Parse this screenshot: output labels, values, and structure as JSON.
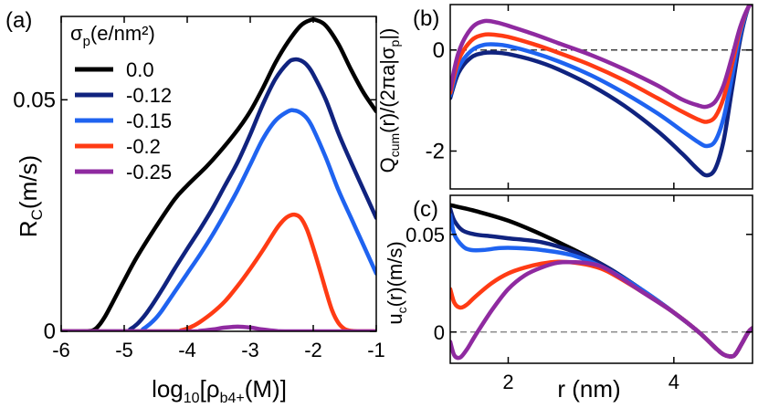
{
  "colors": {
    "black": "#000000",
    "navy": "#10237f",
    "blue": "#1f63f0",
    "red": "#ff3b14",
    "purple": "#8f2aa0",
    "refline": "#000000"
  },
  "chart_data": [
    {
      "id": "a",
      "type": "line",
      "panel_label": "(a)",
      "xlabel_prefix": "log",
      "xlabel_sub": "10",
      "xlabel_mid": "[ρ",
      "xlabel_sub2": "b4+",
      "xlabel_suffix": "(M)]",
      "ylabel_main": "R",
      "ylabel_sub": "C",
      "ylabel_suffix": "(m/s)",
      "xlim": [
        -6,
        -1
      ],
      "ylim": [
        0,
        0.068
      ],
      "xticks": [
        -6,
        -5,
        -4,
        -3,
        -2,
        -1
      ],
      "xtick_labels": [
        "-6",
        "-5",
        "-4",
        "-3",
        "-2",
        "-1"
      ],
      "yticks": [
        0,
        0.05
      ],
      "ytick_labels": [
        "0",
        "0.05"
      ],
      "legend_title_main": "σ",
      "legend_title_sub": "p",
      "legend_title_suffix": "(e/nm²)",
      "series": [
        {
          "name": "0.0",
          "color_key": "black",
          "x": [
            -6,
            -5.7,
            -5.5,
            -5.4,
            -5.3,
            -5.2,
            -5.0,
            -4.8,
            -4.5,
            -4.2,
            -4.0,
            -3.7,
            -3.5,
            -3.2,
            -3.0,
            -2.8,
            -2.6,
            -2.4,
            -2.2,
            -2.05,
            -1.95,
            -1.8,
            -1.6,
            -1.4,
            -1.2,
            -1.0
          ],
          "y": [
            0,
            0,
            0.0002,
            0.0013,
            0.0033,
            0.0058,
            0.011,
            0.016,
            0.0225,
            0.0285,
            0.0315,
            0.0355,
            0.0385,
            0.0435,
            0.0475,
            0.0525,
            0.058,
            0.0625,
            0.066,
            0.0672,
            0.0672,
            0.066,
            0.062,
            0.0565,
            0.0515,
            0.0475
          ]
        },
        {
          "name": "-0.12",
          "color_key": "navy",
          "x": [
            -6,
            -5.0,
            -4.9,
            -4.8,
            -4.7,
            -4.6,
            -4.4,
            -4.2,
            -4.0,
            -3.8,
            -3.6,
            -3.4,
            -3.2,
            -3.0,
            -2.8,
            -2.6,
            -2.4,
            -2.3,
            -2.2,
            -2.1,
            -2.0,
            -1.8,
            -1.6,
            -1.4,
            -1.2,
            -1.0
          ],
          "y": [
            0,
            0,
            0.0005,
            0.0015,
            0.003,
            0.0048,
            0.009,
            0.0135,
            0.0178,
            0.022,
            0.0265,
            0.0315,
            0.0365,
            0.0425,
            0.049,
            0.0545,
            0.058,
            0.0587,
            0.0585,
            0.0575,
            0.0555,
            0.05,
            0.0428,
            0.0365,
            0.0305,
            0.0245
          ]
        },
        {
          "name": "-0.15",
          "color_key": "blue",
          "x": [
            -6,
            -4.8,
            -4.7,
            -4.6,
            -4.5,
            -4.4,
            -4.2,
            -4.0,
            -3.8,
            -3.6,
            -3.4,
            -3.2,
            -3.0,
            -2.8,
            -2.6,
            -2.4,
            -2.3,
            -2.2,
            -2.1,
            -2.0,
            -1.8,
            -1.6,
            -1.4,
            -1.2,
            -1.0
          ],
          "y": [
            0,
            0,
            0.0005,
            0.0015,
            0.0028,
            0.0045,
            0.0085,
            0.0125,
            0.0165,
            0.0208,
            0.0255,
            0.0305,
            0.036,
            0.0415,
            0.0455,
            0.0475,
            0.0477,
            0.0472,
            0.046,
            0.0437,
            0.0375,
            0.0305,
            0.0245,
            0.0185,
            0.0125
          ]
        },
        {
          "name": "-0.2",
          "color_key": "red",
          "x": [
            -6,
            -4.2,
            -4.1,
            -4.0,
            -3.9,
            -3.8,
            -3.6,
            -3.4,
            -3.2,
            -3.0,
            -2.8,
            -2.6,
            -2.5,
            -2.4,
            -2.3,
            -2.2,
            -2.1,
            -2.0,
            -1.9,
            -1.8,
            -1.7,
            -1.6,
            -1.5,
            -1.4,
            -1.3,
            -1.0
          ],
          "y": [
            0,
            0,
            0.0002,
            0.0006,
            0.0012,
            0.002,
            0.004,
            0.0065,
            0.0098,
            0.0135,
            0.0175,
            0.0218,
            0.0236,
            0.0248,
            0.0252,
            0.0245,
            0.022,
            0.018,
            0.0135,
            0.0088,
            0.0045,
            0.0018,
            0.0005,
            0.0001,
            0,
            0
          ]
        },
        {
          "name": "-0.25",
          "color_key": "purple",
          "x": [
            -6,
            -4.0,
            -3.8,
            -3.6,
            -3.4,
            -3.2,
            -3.0,
            -2.8,
            -2.6,
            -2.4,
            -1.0
          ],
          "y": [
            0,
            0,
            0.0001,
            0.0004,
            0.0008,
            0.001,
            0.0008,
            0.0004,
            0.0001,
            0,
            0
          ]
        }
      ]
    },
    {
      "id": "b",
      "type": "line",
      "panel_label": "(b)",
      "ylabel_main": "Q",
      "ylabel_sub": "cum",
      "ylabel_rest": "(r)/(2πa|σ",
      "ylabel_sub2": "p",
      "ylabel_end": "|)",
      "xlim": [
        1.3,
        4.95
      ],
      "ylim": [
        -2.75,
        0.9
      ],
      "yticks": [
        0,
        -2
      ],
      "ytick_labels": [
        "0",
        "-2"
      ],
      "xticks": [
        2,
        4
      ],
      "series": [
        {
          "name": "-0.12",
          "color_key": "navy",
          "x": [
            1.3,
            1.4,
            1.55,
            1.7,
            1.85,
            2.0,
            2.3,
            2.6,
            3.0,
            3.4,
            3.8,
            4.1,
            4.3,
            4.4,
            4.5,
            4.6,
            4.7,
            4.8,
            4.9,
            4.95
          ],
          "y": [
            -0.95,
            -0.45,
            -0.15,
            -0.06,
            -0.05,
            -0.08,
            -0.2,
            -0.38,
            -0.7,
            -1.1,
            -1.6,
            -2.05,
            -2.38,
            -2.48,
            -2.35,
            -1.8,
            -0.8,
            0.2,
            0.85,
            0.9
          ]
        },
        {
          "name": "-0.15",
          "color_key": "blue",
          "x": [
            1.3,
            1.4,
            1.55,
            1.7,
            1.85,
            2.0,
            2.3,
            2.6,
            3.0,
            3.4,
            3.8,
            4.1,
            4.3,
            4.4,
            4.5,
            4.6,
            4.7,
            4.8,
            4.9,
            4.95
          ],
          "y": [
            -0.9,
            -0.35,
            -0.02,
            0.1,
            0.11,
            0.08,
            -0.05,
            -0.22,
            -0.5,
            -0.85,
            -1.25,
            -1.6,
            -1.83,
            -1.9,
            -1.8,
            -1.35,
            -0.55,
            0.3,
            0.85,
            0.9
          ]
        },
        {
          "name": "-0.2",
          "color_key": "red",
          "x": [
            1.3,
            1.4,
            1.55,
            1.7,
            1.85,
            2.0,
            2.3,
            2.6,
            3.0,
            3.4,
            3.8,
            4.1,
            4.3,
            4.4,
            4.5,
            4.6,
            4.7,
            4.8,
            4.9,
            4.95
          ],
          "y": [
            -0.85,
            -0.2,
            0.18,
            0.3,
            0.3,
            0.26,
            0.12,
            -0.05,
            -0.3,
            -0.6,
            -0.95,
            -1.22,
            -1.38,
            -1.42,
            -1.32,
            -0.95,
            -0.3,
            0.4,
            0.85,
            0.9
          ]
        },
        {
          "name": "-0.25",
          "color_key": "purple",
          "x": [
            1.3,
            1.4,
            1.55,
            1.7,
            1.85,
            2.0,
            2.3,
            2.6,
            3.0,
            3.4,
            3.8,
            4.1,
            4.3,
            4.4,
            4.5,
            4.6,
            4.7,
            4.8,
            4.9,
            4.95
          ],
          "y": [
            -0.78,
            -0.05,
            0.42,
            0.57,
            0.55,
            0.48,
            0.32,
            0.14,
            -0.1,
            -0.38,
            -0.7,
            -0.98,
            -1.1,
            -1.12,
            -1.02,
            -0.7,
            -0.15,
            0.45,
            0.85,
            0.9
          ]
        }
      ]
    },
    {
      "id": "c",
      "type": "line",
      "panel_label": "(c)",
      "xlabel_main": "r (nm)",
      "ylabel_main": "u",
      "ylabel_sub": "c",
      "ylabel_suffix": "(r)(m/s)",
      "xlim": [
        1.3,
        4.95
      ],
      "ylim": [
        -0.016,
        0.07
      ],
      "xticks": [
        2,
        4
      ],
      "xtick_labels": [
        "2",
        "4"
      ],
      "yticks": [
        0,
        0.05
      ],
      "ytick_labels": [
        "0",
        "0.05"
      ],
      "series": [
        {
          "name": "0.0",
          "color_key": "black",
          "x": [
            1.3,
            1.6,
            2.0,
            2.4,
            2.8,
            3.2,
            3.6,
            4.0,
            4.3,
            4.5,
            4.6,
            4.7,
            4.75,
            4.82,
            4.9,
            4.95
          ],
          "y": [
            0.065,
            0.062,
            0.057,
            0.05,
            0.042,
            0.033,
            0.022,
            0.01,
            0.0,
            -0.008,
            -0.0115,
            -0.0125,
            -0.011,
            -0.006,
            0.0,
            0.002
          ]
        },
        {
          "name": "-0.12",
          "color_key": "navy",
          "x": [
            1.3,
            1.35,
            1.45,
            1.6,
            1.8,
            2.0,
            2.4,
            2.8,
            3.2,
            3.6,
            4.0,
            4.3,
            4.5,
            4.6,
            4.7,
            4.75,
            4.82,
            4.9,
            4.95
          ],
          "y": [
            0.063,
            0.057,
            0.052,
            0.05,
            0.049,
            0.048,
            0.046,
            0.041,
            0.033,
            0.022,
            0.01,
            0.0,
            -0.008,
            -0.0115,
            -0.0125,
            -0.011,
            -0.006,
            0.0,
            0.002
          ]
        },
        {
          "name": "-0.15",
          "color_key": "blue",
          "x": [
            1.3,
            1.35,
            1.45,
            1.55,
            1.7,
            1.9,
            2.1,
            2.4,
            2.8,
            3.2,
            3.6,
            4.0,
            4.3,
            4.5,
            4.6,
            4.7,
            4.75,
            4.82,
            4.9,
            4.95
          ],
          "y": [
            0.06,
            0.05,
            0.044,
            0.042,
            0.042,
            0.043,
            0.043,
            0.042,
            0.039,
            0.032,
            0.022,
            0.01,
            0.0,
            -0.008,
            -0.0115,
            -0.0125,
            -0.011,
            -0.006,
            0.0,
            0.002
          ]
        },
        {
          "name": "-0.2",
          "color_key": "red",
          "x": [
            1.3,
            1.35,
            1.42,
            1.5,
            1.6,
            1.8,
            2.0,
            2.2,
            2.4,
            2.6,
            2.8,
            3.0,
            3.2,
            3.6,
            4.0,
            4.3,
            4.5,
            4.6,
            4.7,
            4.75,
            4.82,
            4.9,
            4.95
          ],
          "y": [
            0.022,
            0.015,
            0.0125,
            0.014,
            0.018,
            0.025,
            0.03,
            0.033,
            0.035,
            0.036,
            0.0355,
            0.034,
            0.031,
            0.021,
            0.01,
            0.0,
            -0.008,
            -0.0115,
            -0.0125,
            -0.011,
            -0.006,
            0.0,
            0.002
          ]
        },
        {
          "name": "-0.25",
          "color_key": "purple",
          "x": [
            1.3,
            1.35,
            1.42,
            1.5,
            1.6,
            1.8,
            2.0,
            2.2,
            2.4,
            2.6,
            2.8,
            3.0,
            3.2,
            3.6,
            4.0,
            4.3,
            4.5,
            4.6,
            4.7,
            4.75,
            4.82,
            4.9,
            4.95
          ],
          "y": [
            -0.005,
            -0.012,
            -0.013,
            -0.009,
            -0.002,
            0.011,
            0.022,
            0.029,
            0.033,
            0.0355,
            0.0358,
            0.035,
            0.032,
            0.021,
            0.01,
            0.0,
            -0.008,
            -0.0115,
            -0.0125,
            -0.011,
            -0.006,
            0.0,
            0.002
          ]
        }
      ]
    }
  ]
}
